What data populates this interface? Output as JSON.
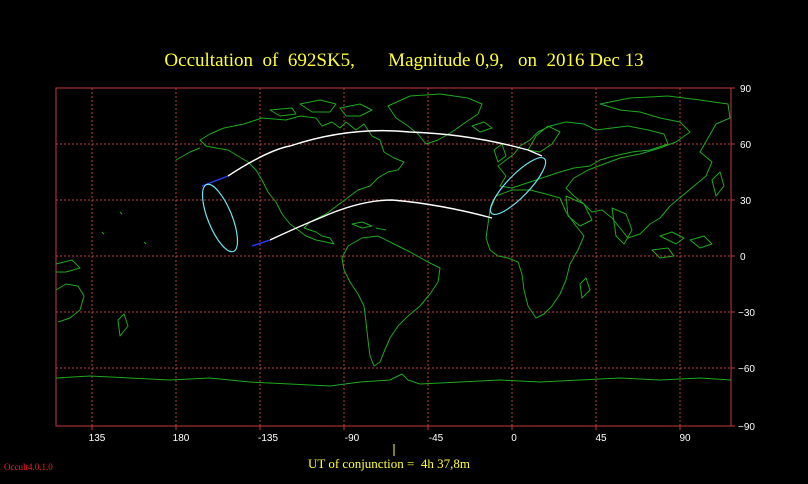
{
  "title": "Occultation  of  692SK5,       Magnitude 0,9,   on  2016 Dec 13",
  "map": {
    "lon_ticks": [
      "135",
      "180",
      "-135",
      "-90",
      "-45",
      "0",
      "45",
      "90"
    ],
    "lat_ticks": [
      "90",
      "60",
      "30",
      "0",
      "−30",
      "−60",
      "−90"
    ],
    "colors": {
      "grid": "#c43c3c",
      "coast": "#1fa81f",
      "path": "#ffffff",
      "ellipse": "#6fe4f0",
      "path_ends": "#2a3cff",
      "conjunction_marker": "#ffff33"
    }
  },
  "footer": {
    "conjunction_text": "UT of conjunction =  4h 37,8m"
  },
  "version": "Occult4.0.1.0"
}
